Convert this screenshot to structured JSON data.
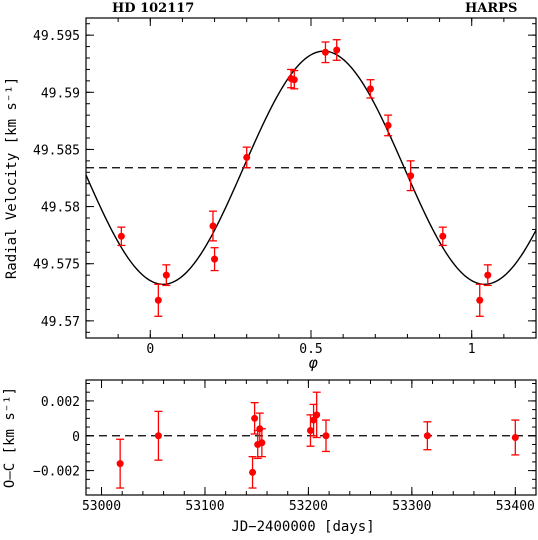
{
  "header": {
    "left": "HD 102117",
    "right": "HARPS"
  },
  "chart_data": [
    {
      "type": "scatter",
      "ylabel": "Radial Velocity [km s⁻¹]",
      "xlabel": "φ",
      "xlim": [
        -0.2,
        1.2
      ],
      "ylim": [
        49.5685,
        49.5965
      ],
      "xticks": [
        0,
        0.5,
        1
      ],
      "xtick_labels": [
        "0",
        "0.5",
        "1"
      ],
      "yticks": [
        49.57,
        49.575,
        49.58,
        49.585,
        49.59,
        49.595
      ],
      "ytick_labels": [
        "49.57",
        "49.575",
        "49.58",
        "49.585",
        "49.59",
        "49.595"
      ],
      "systemic_velocity": 49.5834,
      "model_amplitude": 0.0102,
      "model_min_phase": 0.04,
      "point_color": "#ff0000",
      "points": [
        {
          "x": -0.09,
          "y": 49.5774,
          "err": 0.0008
        },
        {
          "x": 0.025,
          "y": 49.5718,
          "err": 0.0014
        },
        {
          "x": 0.05,
          "y": 49.574,
          "err": 0.0009
        },
        {
          "x": 0.195,
          "y": 49.5783,
          "err": 0.0013
        },
        {
          "x": 0.2,
          "y": 49.5754,
          "err": 0.001
        },
        {
          "x": 0.3,
          "y": 49.5843,
          "err": 0.0009
        },
        {
          "x": 0.438,
          "y": 49.5912,
          "err": 0.0008
        },
        {
          "x": 0.448,
          "y": 49.5911,
          "err": 0.0008
        },
        {
          "x": 0.545,
          "y": 49.5935,
          "err": 0.0009
        },
        {
          "x": 0.58,
          "y": 49.5937,
          "err": 0.0009
        },
        {
          "x": 0.685,
          "y": 49.5903,
          "err": 0.0008
        },
        {
          "x": 0.74,
          "y": 49.5871,
          "err": 0.0009
        },
        {
          "x": 0.81,
          "y": 49.5827,
          "err": 0.0013
        },
        {
          "x": 0.91,
          "y": 49.5774,
          "err": 0.0008
        },
        {
          "x": 1.025,
          "y": 49.5718,
          "err": 0.0014
        },
        {
          "x": 1.05,
          "y": 49.574,
          "err": 0.0009
        }
      ]
    },
    {
      "type": "scatter",
      "ylabel": "O–C [km s⁻¹]",
      "xlabel": "JD−2400000 [days]",
      "xlim": [
        52985,
        53420
      ],
      "ylim": [
        -0.0034,
        0.0032
      ],
      "xticks": [
        53000,
        53100,
        53200,
        53300,
        53400
      ],
      "xtick_labels": [
        "53000",
        "53100",
        "53200",
        "53300",
        "53400"
      ],
      "yticks": [
        -0.002,
        0,
        0.002
      ],
      "ytick_labels": [
        "−0.002",
        "0",
        "0.002"
      ],
      "point_color": "#ff0000",
      "points": [
        {
          "x": 53018,
          "y": -0.0016,
          "err": 0.0014
        },
        {
          "x": 53055,
          "y": 0.0,
          "err": 0.0014
        },
        {
          "x": 53146,
          "y": -0.0021,
          "err": 0.0009
        },
        {
          "x": 53148,
          "y": 0.001,
          "err": 0.0009
        },
        {
          "x": 53151,
          "y": -0.0005,
          "err": 0.0008
        },
        {
          "x": 53153,
          "y": 0.0004,
          "err": 0.0009
        },
        {
          "x": 53155,
          "y": -0.0004,
          "err": 0.0008
        },
        {
          "x": 53202,
          "y": 0.0003,
          "err": 0.0009
        },
        {
          "x": 53205,
          "y": 0.0009,
          "err": 0.0009
        },
        {
          "x": 53208,
          "y": 0.0012,
          "err": 0.0013
        },
        {
          "x": 53217,
          "y": 0.0,
          "err": 0.0009
        },
        {
          "x": 53315,
          "y": 0.0,
          "err": 0.0008
        },
        {
          "x": 53400,
          "y": -0.0001,
          "err": 0.001
        }
      ]
    }
  ]
}
